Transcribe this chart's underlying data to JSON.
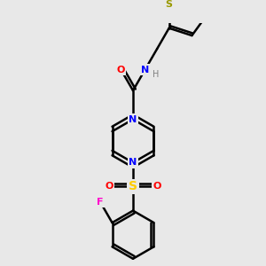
{
  "bg_color": "#e8e8e8",
  "bond_color": "#000000",
  "line_width": 1.8,
  "atom_colors": {
    "O": "#ff0000",
    "N": "#0000ff",
    "S_sulfonyl": "#ffcc00",
    "S_thiophene": "#999900",
    "F": "#ff00cc",
    "H": "#808080",
    "C": "#000000"
  },
  "font_size": 8,
  "fig_width": 3.0,
  "fig_height": 3.0,
  "dpi": 100
}
